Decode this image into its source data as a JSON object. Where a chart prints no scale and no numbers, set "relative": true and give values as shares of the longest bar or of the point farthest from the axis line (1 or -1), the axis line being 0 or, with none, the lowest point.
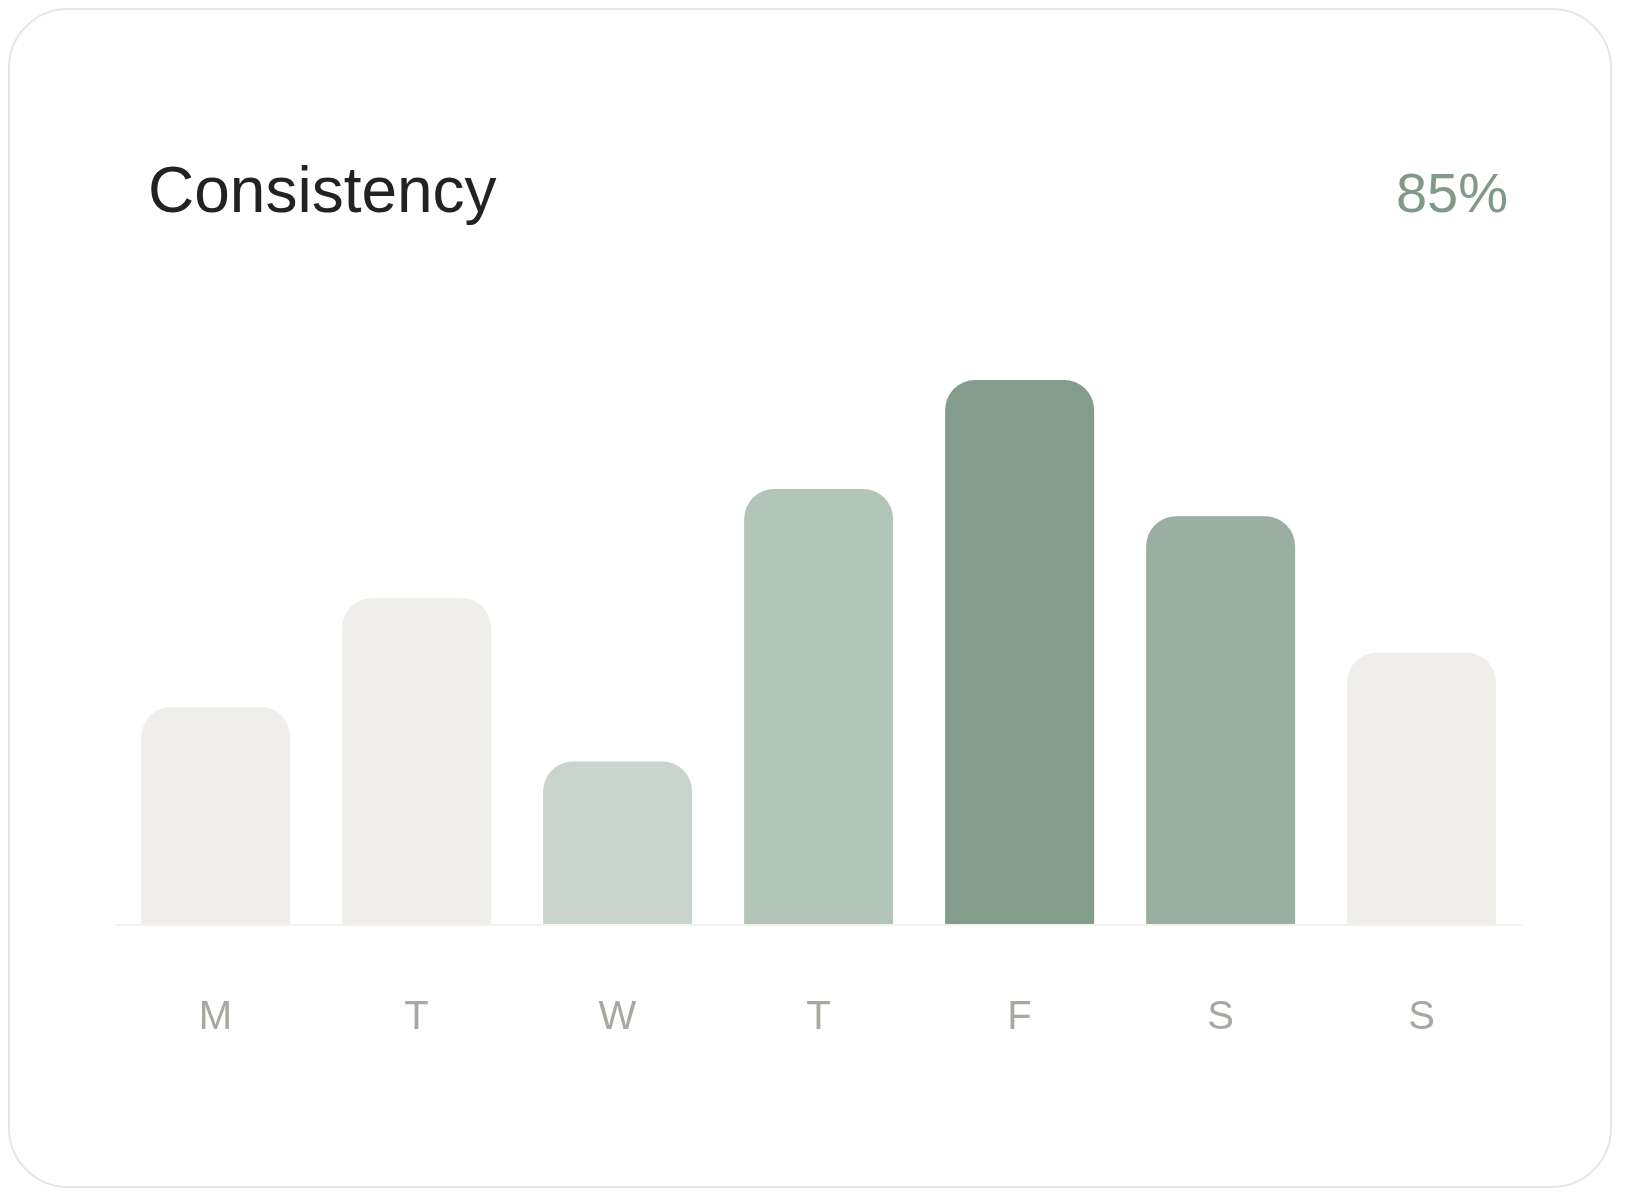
{
  "chart_data": {
    "type": "bar",
    "title": "Consistency",
    "annotations": [
      "85%"
    ],
    "relative": true,
    "categories": [
      "M",
      "T",
      "W",
      "T",
      "F",
      "S",
      "S"
    ],
    "values": [
      0.4,
      0.6,
      0.3,
      0.8,
      1,
      0.75,
      0.5
    ],
    "colors": [
      "#f0eeea",
      "#f0eeea",
      "#c8d4cc",
      "#b3c4b8",
      "#839c8c",
      "#9aafa2",
      "#f0eeea"
    ]
  }
}
